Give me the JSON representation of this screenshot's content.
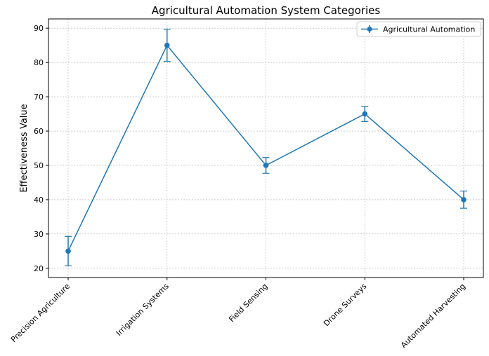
{
  "chart_data": {
    "type": "line",
    "title": "Agricultural Automation System Categories",
    "xlabel": "",
    "ylabel": "Effectiveness Value",
    "categories": [
      "Precision Agriculture",
      "Irrigation Systems",
      "Field Sensing",
      "Drone Surveys",
      "Automated Harvesting"
    ],
    "series": [
      {
        "name": "Agricultural Automation",
        "values": [
          25,
          85,
          50,
          65,
          40
        ],
        "error": [
          4.3,
          4.7,
          2.3,
          2.2,
          2.5
        ],
        "color": "#1f77b4"
      }
    ],
    "ylim": [
      17.3,
      92.7
    ],
    "yticks": [
      20,
      30,
      40,
      50,
      60,
      70,
      80,
      90
    ],
    "grid": true,
    "legend_position": "top-right"
  }
}
